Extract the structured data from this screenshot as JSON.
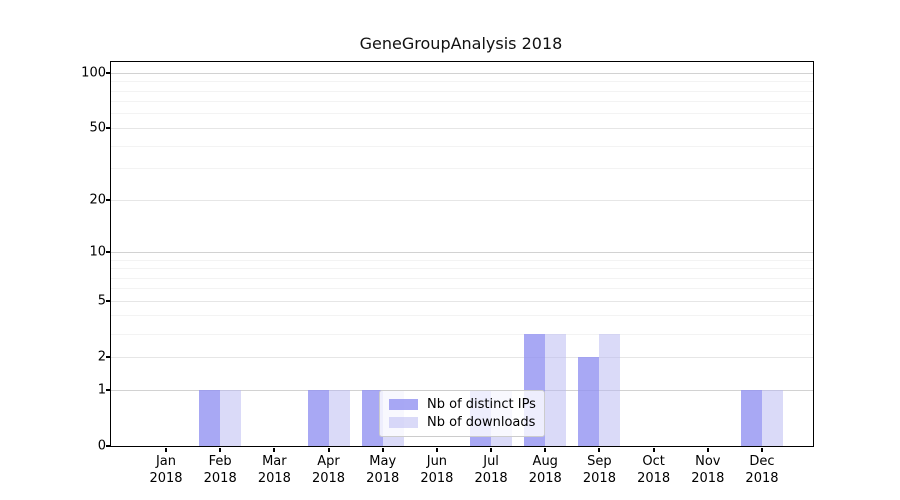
{
  "chart_data": {
    "type": "bar",
    "title": "GeneGroupAnalysis 2018",
    "months": [
      "Jan",
      "Feb",
      "Mar",
      "Apr",
      "May",
      "Jun",
      "Jul",
      "Aug",
      "Sep",
      "Oct",
      "Nov",
      "Dec"
    ],
    "year": "2018",
    "series": [
      {
        "name": "Nb of distinct IPs",
        "color_on_white": "#a8a8f4",
        "values": [
          0,
          1,
          0,
          1,
          1,
          0,
          1,
          3,
          2,
          0,
          0,
          1
        ]
      },
      {
        "name": "Nb of downloads",
        "color_on_white": "#dadaf8",
        "values": [
          0,
          1,
          0,
          1,
          1,
          0,
          1,
          3,
          3,
          0,
          0,
          1
        ]
      }
    ],
    "y_axis": {
      "scale": "log10(1+x)",
      "tick_values": [
        0,
        1,
        2,
        5,
        10,
        20,
        50,
        100
      ],
      "tick_labels": [
        "0",
        "1",
        "2",
        "5",
        "10",
        "20",
        "50",
        "100"
      ],
      "grid_major_values": [
        1,
        10,
        100
      ],
      "grid_mid_values": [
        2,
        5,
        20,
        50
      ],
      "grid_minor_values": [
        3,
        4,
        6,
        7,
        8,
        9,
        30,
        40,
        60,
        70,
        80,
        90
      ],
      "grid": true
    },
    "legend": {
      "position": "inside-bottom-center"
    },
    "colors": {
      "bar_distinct_ips": "#a8a8f4",
      "bar_downloads": "#dadaf8",
      "grid_major": "#d2d2d2",
      "grid_minor": "#f3f3f3",
      "spine": "#000000"
    }
  }
}
